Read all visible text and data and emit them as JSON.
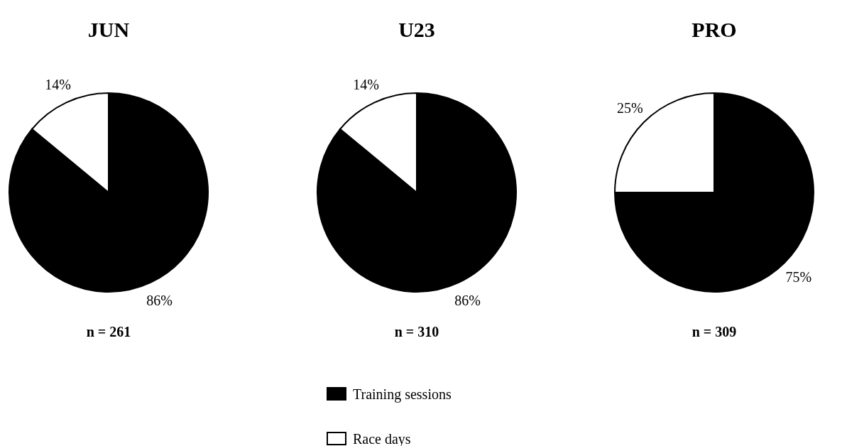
{
  "chart_data": [
    {
      "type": "pie",
      "title": "JUN",
      "categories": [
        null,
        null
      ],
      "values": [
        86,
        14
      ],
      "colors": [
        "#000000",
        "#ffffff"
      ],
      "value_labels": [
        "86%",
        "14%"
      ],
      "annotations": [
        "n = 261"
      ]
    },
    {
      "type": "pie",
      "title": "U23",
      "categories": [
        "Training sessions",
        "Race days"
      ],
      "values": [
        86,
        14
      ],
      "colors": [
        "#000000",
        "#ffffff"
      ],
      "value_labels": [
        "86%",
        "14%"
      ],
      "annotations": [
        "n = 310"
      ],
      "legend": "bottom"
    },
    {
      "type": "pie",
      "title": "PRO",
      "categories": [
        null,
        null
      ],
      "values": [
        75,
        25
      ],
      "colors": [
        "#000000",
        "#ffffff"
      ],
      "value_labels": [
        "75%",
        "25%"
      ],
      "annotations": [
        "n = 309"
      ]
    }
  ]
}
